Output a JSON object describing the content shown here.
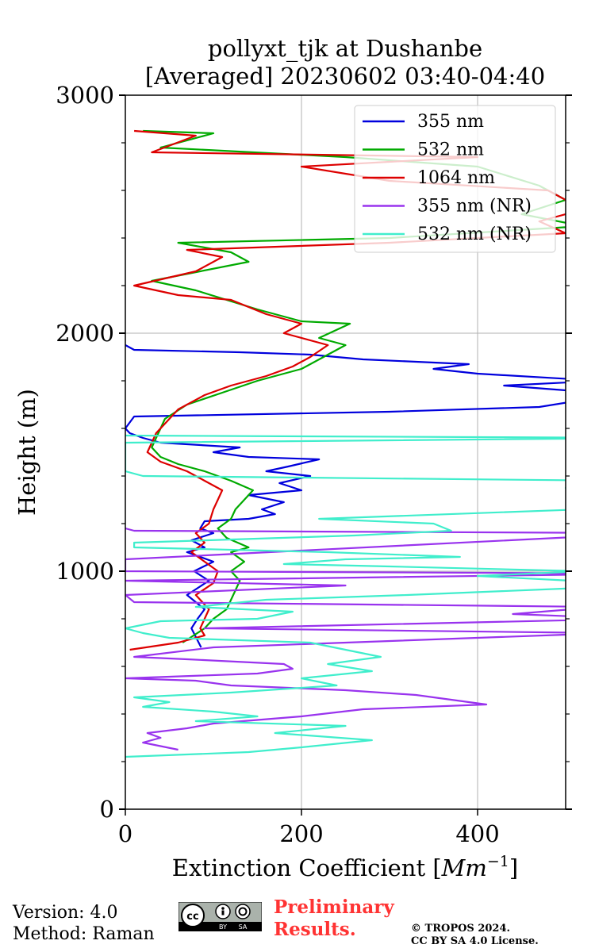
{
  "chart_data": {
    "type": "line",
    "title": [
      "pollyxt_tjk at Dushanbe",
      "[Averaged] 20230602 03:40-04:40"
    ],
    "xlabel": "Extinction Coefficient [Mm⁻¹]",
    "xlabel_parts": {
      "main": "Extinction Coefficient [",
      "unit": "Mm",
      "exp": "−1",
      "close": "]"
    },
    "ylabel": "Height (m)",
    "xlim": [
      0,
      500
    ],
    "ylim": [
      0,
      3000
    ],
    "xticks": [
      0,
      200,
      400
    ],
    "yticks": [
      0,
      1000,
      2000,
      3000
    ],
    "xtick_labels": [
      "0",
      "200",
      "400"
    ],
    "ytick_labels": [
      "0",
      "1000",
      "2000",
      "3000"
    ],
    "y_minor_ticks": [
      200,
      400,
      600,
      800,
      1200,
      1400,
      1600,
      1800,
      2200,
      2400,
      2600,
      2800
    ],
    "grid": true,
    "legend_position": "top-right",
    "series": [
      {
        "name": "355 nm",
        "color": "#0000dd",
        "points": [
          [
            86,
            680
          ],
          [
            75,
            760
          ],
          [
            82,
            800
          ],
          [
            90,
            840
          ],
          [
            70,
            900
          ],
          [
            95,
            960
          ],
          [
            78,
            1000
          ],
          [
            100,
            1040
          ],
          [
            70,
            1080
          ],
          [
            90,
            1100
          ],
          [
            75,
            1130
          ],
          [
            100,
            1160
          ],
          [
            85,
            1180
          ],
          [
            90,
            1210
          ],
          [
            140,
            1220
          ],
          [
            170,
            1240
          ],
          [
            155,
            1260
          ],
          [
            180,
            1290
          ],
          [
            140,
            1320
          ],
          [
            200,
            1340
          ],
          [
            175,
            1370
          ],
          [
            210,
            1400
          ],
          [
            160,
            1420
          ],
          [
            185,
            1440
          ],
          [
            220,
            1470
          ],
          [
            140,
            1480
          ],
          [
            100,
            1500
          ],
          [
            130,
            1520
          ],
          [
            40,
            1540
          ],
          [
            20,
            1560
          ],
          [
            5,
            1580
          ],
          [
            0,
            1600
          ],
          [
            10,
            1650
          ],
          [
            300,
            1670
          ],
          [
            470,
            1690
          ],
          [
            520,
            1720
          ],
          [
            500,
            1760
          ],
          [
            430,
            1780
          ],
          [
            540,
            1800
          ],
          [
            400,
            1830
          ],
          [
            350,
            1850
          ],
          [
            390,
            1870
          ],
          [
            270,
            1890
          ],
          [
            210,
            1910
          ],
          [
            130,
            1920
          ],
          [
            10,
            1930
          ],
          [
            0,
            1950
          ]
        ]
      },
      {
        "name": "532 nm",
        "color": "#00aa00",
        "points": [
          [
            65,
            700
          ],
          [
            90,
            760
          ],
          [
            100,
            800
          ],
          [
            115,
            840
          ],
          [
            120,
            880
          ],
          [
            125,
            920
          ],
          [
            130,
            960
          ],
          [
            120,
            1000
          ],
          [
            135,
            1040
          ],
          [
            120,
            1080
          ],
          [
            140,
            1100
          ],
          [
            115,
            1140
          ],
          [
            105,
            1180
          ],
          [
            120,
            1220
          ],
          [
            125,
            1260
          ],
          [
            135,
            1300
          ],
          [
            145,
            1340
          ],
          [
            120,
            1380
          ],
          [
            90,
            1420
          ],
          [
            60,
            1450
          ],
          [
            40,
            1480
          ],
          [
            30,
            1520
          ],
          [
            35,
            1560
          ],
          [
            40,
            1600
          ],
          [
            45,
            1640
          ],
          [
            70,
            1700
          ],
          [
            110,
            1750
          ],
          [
            150,
            1800
          ],
          [
            200,
            1850
          ],
          [
            225,
            1900
          ],
          [
            250,
            1950
          ],
          [
            220,
            1980
          ],
          [
            255,
            2040
          ],
          [
            200,
            2050
          ],
          [
            150,
            2100
          ],
          [
            80,
            2180
          ],
          [
            30,
            2220
          ],
          [
            140,
            2300
          ],
          [
            120,
            2340
          ],
          [
            60,
            2380
          ],
          [
            300,
            2400
          ],
          [
            520,
            2450
          ],
          [
            450,
            2500
          ],
          [
            500,
            2560
          ],
          [
            470,
            2620
          ],
          [
            400,
            2700
          ],
          [
            250,
            2740
          ],
          [
            40,
            2780
          ],
          [
            100,
            2840
          ],
          [
            20,
            2850
          ]
        ]
      },
      {
        "name": "1064 nm",
        "color": "#dd0000",
        "points": [
          [
            5,
            670
          ],
          [
            60,
            700
          ],
          [
            90,
            730
          ],
          [
            85,
            760
          ],
          [
            90,
            800
          ],
          [
            95,
            840
          ],
          [
            80,
            900
          ],
          [
            100,
            950
          ],
          [
            105,
            1000
          ],
          [
            90,
            1040
          ],
          [
            75,
            1080
          ],
          [
            90,
            1120
          ],
          [
            80,
            1160
          ],
          [
            95,
            1200
          ],
          [
            100,
            1260
          ],
          [
            105,
            1300
          ],
          [
            110,
            1340
          ],
          [
            90,
            1380
          ],
          [
            70,
            1420
          ],
          [
            40,
            1460
          ],
          [
            25,
            1500
          ],
          [
            30,
            1540
          ],
          [
            35,
            1580
          ],
          [
            45,
            1620
          ],
          [
            60,
            1680
          ],
          [
            90,
            1740
          ],
          [
            120,
            1780
          ],
          [
            160,
            1820
          ],
          [
            190,
            1860
          ],
          [
            210,
            1900
          ],
          [
            230,
            1950
          ],
          [
            180,
            2000
          ],
          [
            200,
            2040
          ],
          [
            160,
            2080
          ],
          [
            120,
            2140
          ],
          [
            60,
            2160
          ],
          [
            10,
            2200
          ],
          [
            80,
            2260
          ],
          [
            110,
            2320
          ],
          [
            70,
            2350
          ],
          [
            300,
            2380
          ],
          [
            500,
            2420
          ],
          [
            470,
            2470
          ],
          [
            520,
            2520
          ],
          [
            480,
            2600
          ],
          [
            300,
            2640
          ],
          [
            200,
            2700
          ],
          [
            400,
            2740
          ],
          [
            30,
            2760
          ],
          [
            80,
            2830
          ],
          [
            10,
            2850
          ]
        ]
      },
      {
        "name": "355 nm (NR)",
        "color": "#9933ee",
        "points": [
          [
            60,
            250
          ],
          [
            20,
            280
          ],
          [
            40,
            300
          ],
          [
            25,
            320
          ],
          [
            70,
            340
          ],
          [
            100,
            360
          ],
          [
            200,
            390
          ],
          [
            270,
            420
          ],
          [
            410,
            440
          ],
          [
            370,
            460
          ],
          [
            330,
            480
          ],
          [
            250,
            500
          ],
          [
            120,
            520
          ],
          [
            80,
            540
          ],
          [
            0,
            550
          ],
          [
            150,
            570
          ],
          [
            190,
            590
          ],
          [
            180,
            610
          ],
          [
            70,
            630
          ],
          [
            10,
            640
          ],
          [
            100,
            680
          ],
          [
            550,
            740
          ],
          [
            90,
            760
          ],
          [
            580,
            800
          ],
          [
            440,
            820
          ],
          [
            540,
            850
          ],
          [
            10,
            870
          ],
          [
            0,
            900
          ],
          [
            250,
            940
          ],
          [
            0,
            960
          ],
          [
            600,
            990
          ],
          [
            0,
            1000
          ],
          [
            0,
            1050
          ],
          [
            600,
            1160
          ],
          [
            10,
            1170
          ],
          [
            0,
            1180
          ]
        ]
      },
      {
        "name": "532 nm (NR)",
        "color": "#40eecc",
        "points": [
          [
            0,
            220
          ],
          [
            140,
            240
          ],
          [
            200,
            260
          ],
          [
            280,
            290
          ],
          [
            170,
            320
          ],
          [
            250,
            350
          ],
          [
            80,
            370
          ],
          [
            150,
            390
          ],
          [
            100,
            410
          ],
          [
            20,
            430
          ],
          [
            50,
            450
          ],
          [
            10,
            470
          ],
          [
            120,
            490
          ],
          [
            240,
            520
          ],
          [
            200,
            550
          ],
          [
            280,
            580
          ],
          [
            230,
            610
          ],
          [
            290,
            640
          ],
          [
            250,
            670
          ],
          [
            210,
            700
          ],
          [
            50,
            720
          ],
          [
            20,
            740
          ],
          [
            0,
            760
          ],
          [
            40,
            790
          ],
          [
            150,
            800
          ],
          [
            190,
            830
          ],
          [
            80,
            850
          ],
          [
            160,
            880
          ],
          [
            320,
            900
          ],
          [
            520,
            930
          ],
          [
            560,
            950
          ],
          [
            400,
            980
          ],
          [
            520,
            1000
          ],
          [
            300,
            1020
          ],
          [
            180,
            1030
          ],
          [
            250,
            1050
          ],
          [
            380,
            1060
          ],
          [
            230,
            1080
          ],
          [
            10,
            1100
          ],
          [
            10,
            1120
          ],
          [
            260,
            1150
          ],
          [
            370,
            1170
          ],
          [
            350,
            1200
          ],
          [
            220,
            1220
          ],
          [
            520,
            1260
          ],
          [
            540,
            1280
          ],
          [
            600,
            1320
          ],
          [
            500,
            1350
          ],
          [
            560,
            1380
          ],
          [
            20,
            1400
          ],
          [
            0,
            1420
          ],
          [
            0,
            1540
          ],
          [
            600,
            1560
          ],
          [
            0,
            1570
          ]
        ]
      }
    ]
  },
  "footer": {
    "version": "Version: 4.0",
    "method": "Method: Raman",
    "preliminary_line1": "Preliminary",
    "preliminary_line2": "Results.",
    "copyright_line1": "© TROPOS 2024.",
    "copyright_line2": "CC BY SA 4.0 License.",
    "cc_badge": {
      "icon": "cc-by-sa-icon",
      "cc_text": "cc",
      "by_text": "BY",
      "sa_text": "SA"
    }
  }
}
